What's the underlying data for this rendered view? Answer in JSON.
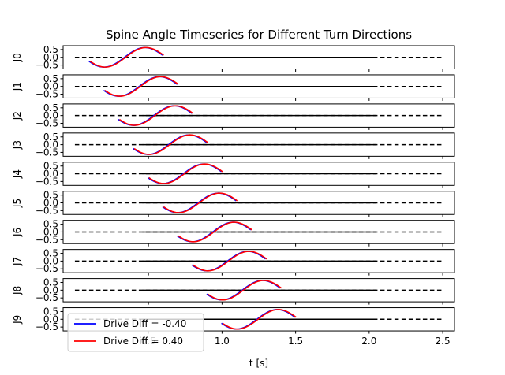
{
  "chart_data": {
    "type": "line",
    "title": "Spine Angle Timeseries for Different Turn Directions",
    "xlabel": "t [s]",
    "xlim": [
      -0.08,
      2.58
    ],
    "x_ticks": [
      0.5,
      1.0,
      1.5,
      2.0,
      2.5
    ],
    "x_tick_labels": [
      "0.5",
      "1.0",
      "1.5",
      "2.0",
      "2.5"
    ],
    "ylim": [
      -0.75,
      0.75
    ],
    "y_ticks": [
      0.5,
      0.0,
      -0.5
    ],
    "y_tick_labels": [
      "0.5",
      "0.0",
      "−0.5"
    ],
    "grid": false,
    "legend_placement": "lower-left",
    "reference_lines": {
      "dashed_x_range": [
        0.0,
        2.5
      ],
      "solid_x_range": [
        0.46,
        2.05
      ]
    },
    "series": [
      {
        "name": "Drive Diff = -0.40",
        "color": "#0000ff"
      },
      {
        "name": "Drive Diff = 0.40",
        "color": "#ff0000"
      }
    ],
    "subplots": [
      {
        "label": "J0",
        "start": 0.1,
        "end": 0.6,
        "peak_t": 0.5,
        "amplitude": 0.63
      },
      {
        "label": "J1",
        "start": 0.2,
        "end": 0.7,
        "peak_t": 0.6,
        "amplitude": 0.63
      },
      {
        "label": "J2",
        "start": 0.3,
        "end": 0.8,
        "peak_t": 0.7,
        "amplitude": 0.63
      },
      {
        "label": "J3",
        "start": 0.4,
        "end": 0.9,
        "peak_t": 0.8,
        "amplitude": 0.63
      },
      {
        "label": "J4",
        "start": 0.5,
        "end": 1.0,
        "peak_t": 0.9,
        "amplitude": 0.63
      },
      {
        "label": "J5",
        "start": 0.6,
        "end": 1.1,
        "peak_t": 1.0,
        "amplitude": 0.63
      },
      {
        "label": "J6",
        "start": 0.7,
        "end": 1.2,
        "peak_t": 1.1,
        "amplitude": 0.63
      },
      {
        "label": "J7",
        "start": 0.8,
        "end": 1.3,
        "peak_t": 1.2,
        "amplitude": 0.63
      },
      {
        "label": "J8",
        "start": 0.9,
        "end": 1.4,
        "peak_t": 1.3,
        "amplitude": 0.63
      },
      {
        "label": "J9",
        "start": 1.0,
        "end": 1.5,
        "peak_t": 1.4,
        "amplitude": 0.63
      }
    ]
  }
}
